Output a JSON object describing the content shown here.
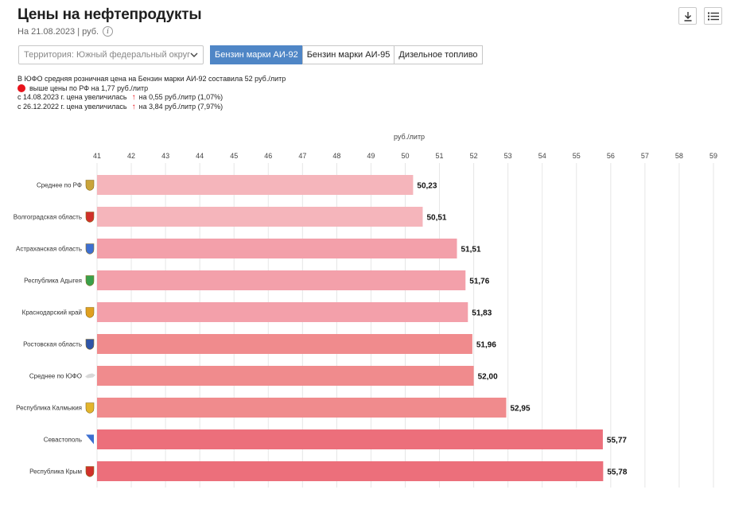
{
  "header": {
    "title": "Цены на нефтепродукты",
    "date": "На 21.08.2023 | руб.",
    "info_glyph": "i"
  },
  "controls": {
    "territory_value": "Территория: Южный федеральный округ",
    "tabs": [
      {
        "label": "Бензин марки АИ-92",
        "active": true
      },
      {
        "label": "Бензин марки АИ-95",
        "active": false
      },
      {
        "label": "Дизельное топливо",
        "active": false
      }
    ]
  },
  "notes": {
    "line1": "В ЮФО средняя розничная цена на Бензин марки АИ-92 составила 52 руб./литр",
    "line2": "выше цены по РФ на 1,77 руб./литр",
    "line3_prefix": "с 14.08.2023 г. цена увеличилась",
    "line3_suffix": "на 0,55 руб./литр (1,07%)",
    "line4_prefix": "с 26.12.2022 г. цена увеличилась",
    "line4_suffix": "на 3,84 руб./литр (7,97%)",
    "colors": {
      "indicator": "#e8141c"
    }
  },
  "chart_data": {
    "type": "bar",
    "orientation": "horizontal",
    "unit_label": "руб./литр",
    "xlim": [
      41,
      59
    ],
    "ticks": [
      "41",
      "42",
      "43",
      "44",
      "45",
      "46",
      "47",
      "48",
      "49",
      "50",
      "51",
      "52",
      "53",
      "54",
      "55",
      "56",
      "57",
      "58",
      "59"
    ],
    "grid": true,
    "categories": [
      "Среднее по РФ",
      "Волгоградская область",
      "Астраханская область",
      "Республика Адыгея",
      "Краснодарский край",
      "Ростовская область",
      "Среднее по ЮФО",
      "Республика Калмыкия",
      "Севастополь",
      "Республика Крым"
    ],
    "values": [
      50.23,
      50.51,
      51.51,
      51.76,
      51.83,
      51.96,
      52.0,
      52.95,
      55.77,
      55.78
    ],
    "value_labels": [
      "50,23",
      "50,51",
      "51,51",
      "51,76",
      "51,83",
      "51,96",
      "52,00",
      "52,95",
      "55,77",
      "55,78"
    ],
    "colors": [
      "#f5b5bb",
      "#f5b5bb",
      "#f3a0aa",
      "#f3a0aa",
      "#f3a0aa",
      "#f08b8d",
      "#f08b8d",
      "#f08b8d",
      "#ec6f7b",
      "#ec6f7b"
    ],
    "region_icons": [
      "emblem-rf-icon",
      "emblem-volgograd-icon",
      "emblem-astrakhan-icon",
      "emblem-adygea-icon",
      "emblem-krasnodar-icon",
      "emblem-rostov-icon",
      "map-ufo-icon",
      "emblem-kalmykia-icon",
      "flag-sevastopol-icon",
      "emblem-crimea-icon"
    ]
  }
}
